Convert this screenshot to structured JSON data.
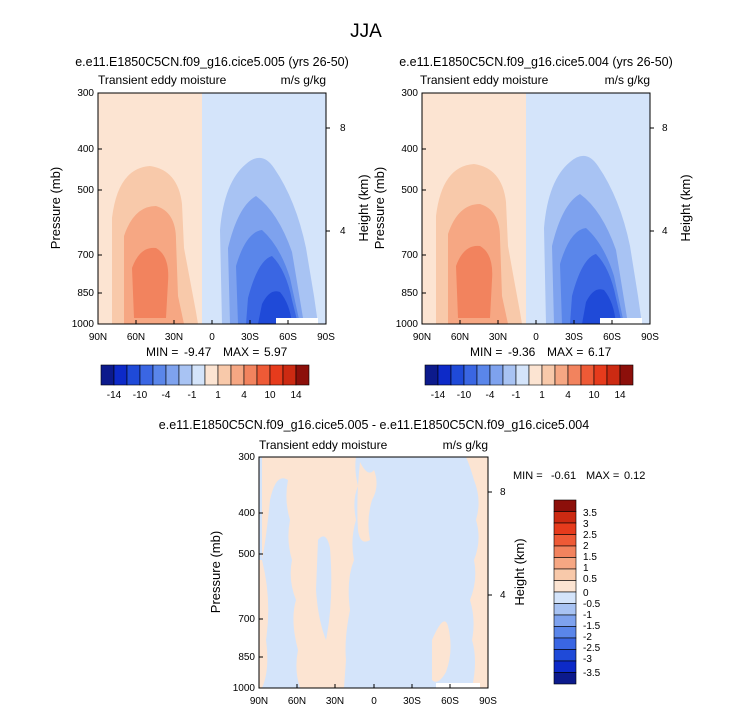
{
  "page_title": "JJA",
  "colors": {
    "neg": [
      "#0c1a8c",
      "#0d2ac8",
      "#1f4ad8",
      "#3a66e3",
      "#5a86ea",
      "#7ea2ee",
      "#a8c3f3",
      "#d4e4fa"
    ],
    "pos": [
      "#fce4d2",
      "#f8c9aa",
      "#f6a783",
      "#f2835e",
      "#ee5a36",
      "#e63b1c",
      "#cc2a12",
      "#8c0f0a"
    ],
    "plot_neg_light": "#d4e4fa",
    "plot_pos_light": "#fce4d2"
  },
  "chart_data": [
    {
      "type": "heatmap",
      "title": "e.e11.E1850C5CN.f09_g16.cice5.005 (yrs 26-50)",
      "left_label": "Transient eddy moisture",
      "right_label": "m/s g/kg",
      "ylabel": "Pressure (mb)",
      "ylabel_right": "Height (km)",
      "x_ticks": [
        "90N",
        "60N",
        "30N",
        "0",
        "30S",
        "60S",
        "90S"
      ],
      "y_ticks": [
        "300",
        "400",
        "500",
        "700",
        "850",
        "1000"
      ],
      "height_ticks": [
        "8",
        "4"
      ],
      "min_label": "MIN =",
      "min_value": "-9.47",
      "max_label": "MAX =",
      "max_value": "5.97",
      "xlim": [
        90,
        -90
      ],
      "ylim": [
        1000,
        300
      ]
    },
    {
      "type": "heatmap",
      "title": "e.e11.E1850C5CN.f09_g16.cice5.004 (yrs 26-50)",
      "left_label": "Transient eddy moisture",
      "right_label": "m/s g/kg",
      "ylabel": "Pressure (mb)",
      "ylabel_right": "Height (km)",
      "x_ticks": [
        "90N",
        "60N",
        "30N",
        "0",
        "30S",
        "60S",
        "90S"
      ],
      "y_ticks": [
        "300",
        "400",
        "500",
        "700",
        "850",
        "1000"
      ],
      "height_ticks": [
        "8",
        "4"
      ],
      "min_label": "MIN =",
      "min_value": "-9.36",
      "max_label": "MAX =",
      "max_value": "6.17",
      "xlim": [
        90,
        -90
      ],
      "ylim": [
        1000,
        300
      ]
    },
    {
      "type": "heatmap",
      "title": "e.e11.E1850C5CN.f09_g16.cice5.005 - e.e11.E1850C5CN.f09_g16.cice5.004",
      "left_label": "Transient eddy moisture",
      "right_label": "m/s g/kg",
      "ylabel": "Pressure (mb)",
      "ylabel_right": "Height (km)",
      "x_ticks": [
        "90N",
        "60N",
        "30N",
        "0",
        "30S",
        "60S",
        "90S"
      ],
      "y_ticks": [
        "300",
        "400",
        "500",
        "700",
        "850",
        "1000"
      ],
      "height_ticks": [
        "8",
        "4"
      ],
      "min_label": "MIN =",
      "min_value": "-0.61",
      "max_label": "MAX =",
      "max_value": "0.12",
      "xlim": [
        90,
        -90
      ],
      "ylim": [
        1000,
        300
      ]
    }
  ],
  "colorbar_top": {
    "labels": [
      "-14",
      "-10",
      "-4",
      "-1",
      "1",
      "4",
      "10",
      "14"
    ]
  },
  "colorbar_diff": {
    "labels": [
      "3.5",
      "3",
      "2.5",
      "2",
      "1.5",
      "1",
      "0.5",
      "0",
      "-0.5",
      "-1",
      "-1.5",
      "-2",
      "-2.5",
      "-3",
      "-3.5"
    ]
  }
}
